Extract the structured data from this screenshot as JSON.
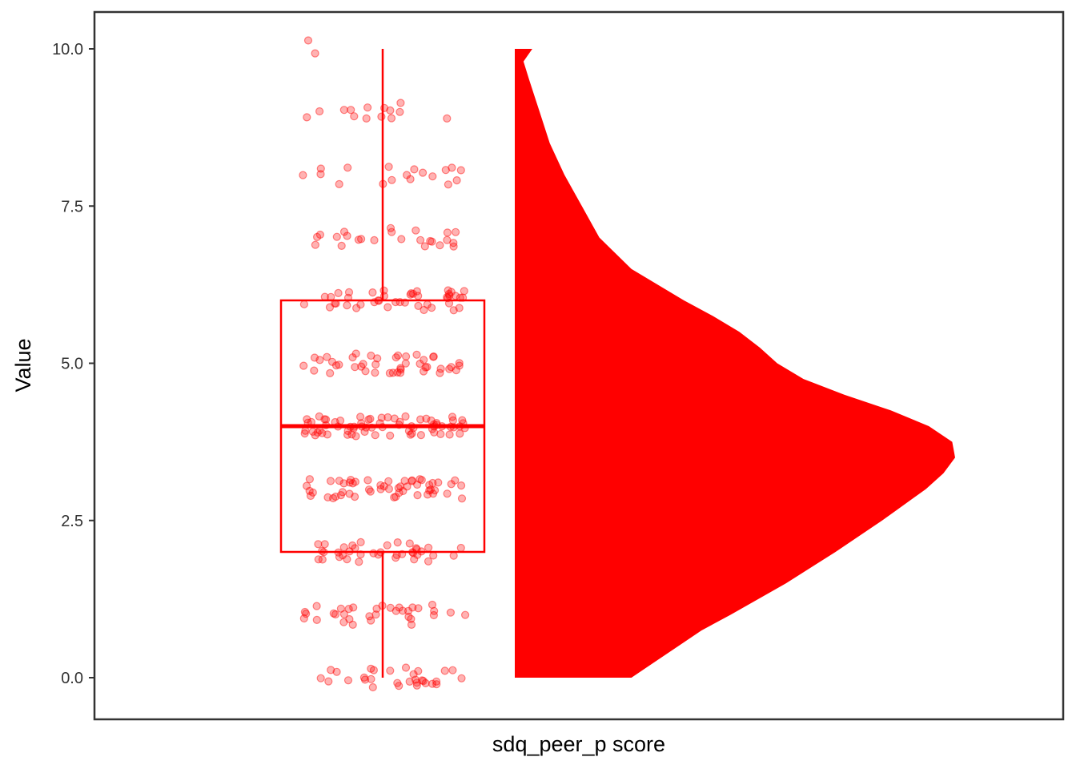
{
  "chart_data": {
    "type": "raincloud",
    "title": "",
    "xlabel": "sdq_peer_p score",
    "ylabel": "Value",
    "ylim": [
      -0.65,
      10.6
    ],
    "yticks": [
      0,
      2.5,
      5,
      7.5,
      10
    ],
    "ytick_labels": [
      "0.0",
      "2.5",
      "5.0",
      "7.5",
      "10.0"
    ],
    "grid": false,
    "legend": "none",
    "color": "#ff0000",
    "point_opacity": 0.3,
    "boxplot": {
      "min": 0,
      "q1": 2,
      "median": 4,
      "q3": 6,
      "max": 10
    },
    "density": {
      "y": [
        0,
        0.25,
        0.5,
        0.75,
        1,
        1.5,
        2,
        2.5,
        3,
        3.25,
        3.5,
        3.75,
        4,
        4.25,
        4.5,
        4.75,
        5,
        5.25,
        5.5,
        5.75,
        6,
        6.25,
        6.5,
        7,
        7.5,
        8,
        8.5,
        9,
        9.5,
        9.8,
        10
      ],
      "density": [
        0.4,
        0.48,
        0.56,
        0.64,
        0.74,
        0.93,
        1.1,
        1.26,
        1.41,
        1.47,
        1.51,
        1.5,
        1.42,
        1.29,
        1.13,
        0.99,
        0.9,
        0.84,
        0.77,
        0.68,
        0.58,
        0.49,
        0.4,
        0.29,
        0.23,
        0.17,
        0.12,
        0.085,
        0.05,
        0.03,
        0.06
      ]
    },
    "points_per_value": [
      {
        "value": 0,
        "count": 30
      },
      {
        "value": 1,
        "count": 34
      },
      {
        "value": 2,
        "count": 38
      },
      {
        "value": 3,
        "count": 54
      },
      {
        "value": 4,
        "count": 70
      },
      {
        "value": 5,
        "count": 44
      },
      {
        "value": 6,
        "count": 44
      },
      {
        "value": 7,
        "count": 24
      },
      {
        "value": 8,
        "count": 18
      },
      {
        "value": 9,
        "count": 14
      },
      {
        "value": 10,
        "count": 2
      }
    ]
  }
}
